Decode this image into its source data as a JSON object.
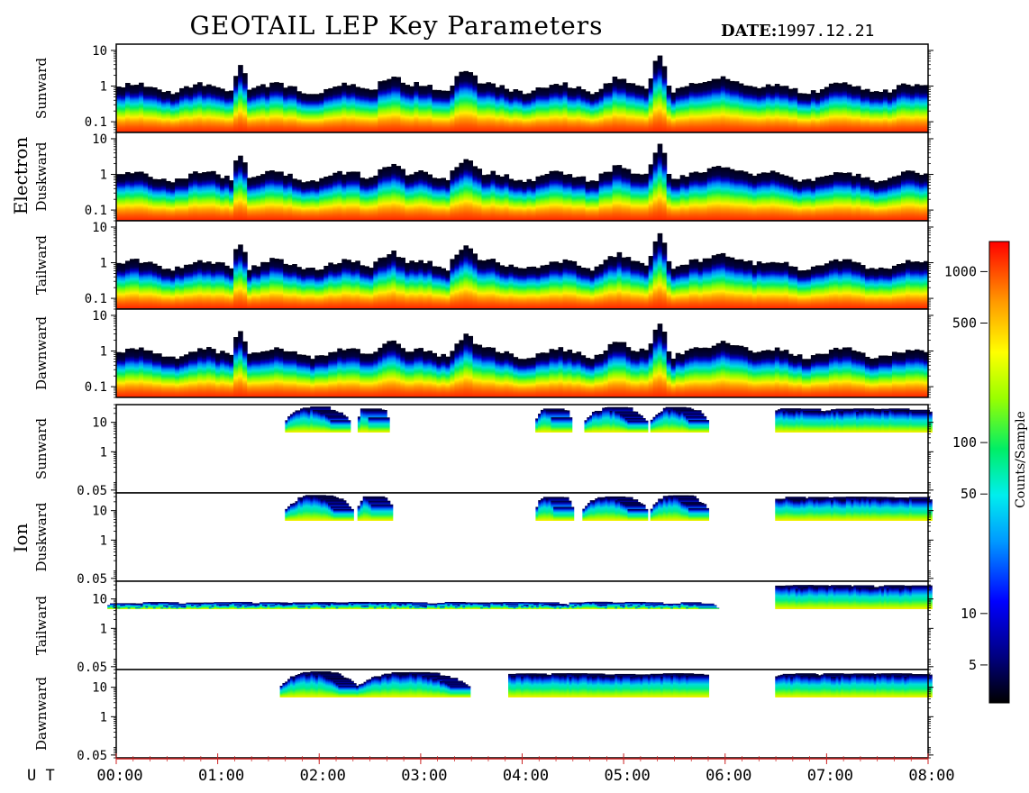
{
  "title": "GEOTAIL LEP Key Parameters",
  "date_label": "DATE:",
  "date_value": "1997.12.21",
  "chart_data": {
    "type": "heatmap",
    "x_axis": {
      "label": "U T",
      "ticks": [
        "00:00",
        "01:00",
        "02:00",
        "03:00",
        "04:00",
        "05:00",
        "06:00",
        "07:00",
        "08:00"
      ],
      "range_hours": [
        0,
        8
      ]
    },
    "colorbar": {
      "label": "Counts/Sample",
      "scale": "log",
      "range": [
        3,
        1500
      ],
      "ticks": [
        5,
        10,
        50,
        100,
        500,
        1000
      ],
      "tick_labels": [
        "5",
        "10",
        "50",
        "100",
        "500",
        "1000"
      ]
    },
    "groups": [
      {
        "name": "Electron",
        "y_scale": "log",
        "y_range": [
          0.05,
          15
        ],
        "y_tick_values": [
          0.1,
          1,
          10
        ],
        "y_tick_labels": [
          "0.1",
          "1",
          "10"
        ],
        "panels": [
          {
            "name": "Sunward"
          },
          {
            "name": "Duskward"
          },
          {
            "name": "Tailward"
          },
          {
            "name": "Dawnward"
          }
        ]
      },
      {
        "name": "Ion",
        "y_scale": "log",
        "y_range": [
          0.04,
          40
        ],
        "y_tick_values": [
          0.05,
          1,
          10
        ],
        "y_tick_labels": [
          "0.05",
          "1",
          "10"
        ],
        "panels": [
          {
            "name": "Sunward"
          },
          {
            "name": "Duskward"
          },
          {
            "name": "Tailward"
          },
          {
            "name": "Dawnward"
          }
        ]
      }
    ],
    "ion_activity_intervals_hours": {
      "Sunward": [
        [
          1.75,
          2.22
        ],
        [
          2.47,
          2.6
        ],
        [
          4.22,
          4.4
        ],
        [
          4.7,
          5.15
        ],
        [
          5.35,
          5.75
        ],
        [
          6.58,
          7.95
        ]
      ],
      "Duskward": [
        [
          1.75,
          2.25
        ],
        [
          2.47,
          2.63
        ],
        [
          4.22,
          4.42
        ],
        [
          4.68,
          5.15
        ],
        [
          5.35,
          5.75
        ],
        [
          6.58,
          7.95
        ]
      ],
      "Tailward": [
        [
          0.0,
          1.55
        ],
        [
          1.55,
          5.85
        ],
        [
          6.58,
          7.95
        ]
      ],
      "Dawnward": [
        [
          1.7,
          2.3
        ],
        [
          2.45,
          3.4
        ],
        [
          3.95,
          5.75
        ],
        [
          6.58,
          7.95
        ]
      ]
    }
  }
}
